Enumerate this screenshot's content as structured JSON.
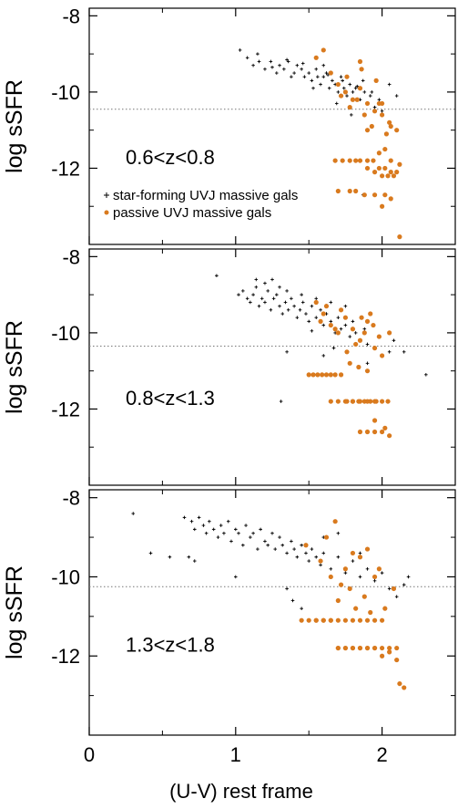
{
  "chart_data": {
    "type": "scatter",
    "xlabel": "(U-V) rest frame",
    "ylabel": "log sSFR",
    "xlim": [
      0,
      2.5
    ],
    "x_ticks": [
      "0",
      "1",
      "2"
    ],
    "colors": {
      "star_forming": "#000000",
      "passive": "#d97a1e",
      "reference_line": "#777777"
    },
    "legend": {
      "placement": "inside-top-panel-left",
      "entries": [
        {
          "marker": "cross",
          "color": "#000000",
          "label": "star-forming UVJ massive gals"
        },
        {
          "marker": "dot",
          "color": "#d97a1e",
          "label": "passive UVJ massive gals"
        }
      ]
    },
    "panels": [
      {
        "label": "0.6<z<0.8",
        "ylim": [
          -14.0,
          -7.8
        ],
        "y_ticks": [
          "-8",
          "-10",
          "-12"
        ],
        "threshold": -10.45,
        "series": [
          {
            "name": "star-forming UVJ massive gals",
            "marker": "cross",
            "x": [
              1.03,
              1.08,
              1.12,
              1.16,
              1.2,
              1.24,
              1.28,
              1.3,
              1.33,
              1.36,
              1.38,
              1.4,
              1.42,
              1.45,
              1.47,
              1.5,
              1.52,
              1.55,
              1.58,
              1.6,
              1.62,
              1.64,
              1.66,
              1.68,
              1.7,
              1.72,
              1.74,
              1.76,
              1.78,
              1.8,
              1.82,
              1.85,
              1.88,
              1.9,
              1.92,
              1.95,
              1.98,
              2.0,
              1.15,
              1.25,
              1.35,
              1.46,
              1.56,
              1.63,
              1.73,
              1.83,
              1.93,
              1.53,
              1.69,
              1.79,
              1.6,
              1.87,
              2.05,
              2.1,
              1.87
            ],
            "y": [
              -8.9,
              -9.1,
              -9.3,
              -9.2,
              -9.4,
              -9.2,
              -9.5,
              -9.3,
              -9.4,
              -9.2,
              -9.6,
              -9.5,
              -9.3,
              -9.4,
              -9.6,
              -9.5,
              -9.7,
              -9.4,
              -9.8,
              -9.6,
              -9.5,
              -9.9,
              -9.7,
              -9.8,
              -10.0,
              -9.6,
              -9.9,
              -10.1,
              -9.8,
              -10.0,
              -9.9,
              -10.2,
              -10.0,
              -10.3,
              -10.1,
              -10.4,
              -10.2,
              -10.5,
              -9.0,
              -9.35,
              -9.15,
              -9.25,
              -9.6,
              -9.55,
              -9.7,
              -9.85,
              -10.0,
              -9.9,
              -10.3,
              -10.6,
              -9.3,
              -9.7,
              -9.8,
              -10.1,
              -12.7
            ],
            "values_shown": "approximate, read from the plot"
          },
          {
            "name": "passive UVJ massive gals",
            "marker": "dot",
            "x": [
              1.6,
              1.55,
              1.65,
              1.7,
              1.75,
              1.8,
              1.85,
              1.9,
              1.95,
              2.0,
              2.05,
              2.1,
              1.72,
              1.78,
              1.83,
              1.88,
              1.93,
              1.98,
              2.03,
              1.76,
              1.86,
              1.96,
              2.06,
              1.9,
              2.0,
              1.68,
              1.73,
              1.78,
              1.82,
              1.85,
              1.9,
              1.94,
              1.98,
              2.02,
              2.06,
              2.1,
              1.9,
              1.95,
              2.0,
              2.04,
              2.08,
              2.12,
              1.98,
              2.02,
              2.06,
              1.7,
              1.78,
              1.82,
              1.88,
              1.95,
              2.02,
              2.06,
              2.0,
              1.85,
              2.12
            ],
            "y": [
              -8.9,
              -9.1,
              -9.5,
              -9.8,
              -10.0,
              -10.2,
              -9.9,
              -10.3,
              -10.5,
              -10.6,
              -10.8,
              -11.0,
              -10.1,
              -10.4,
              -10.2,
              -10.6,
              -10.9,
              -10.3,
              -11.1,
              -9.6,
              -9.4,
              -9.7,
              -10.9,
              -11.0,
              -10.3,
              -11.8,
              -11.8,
              -11.8,
              -11.8,
              -11.8,
              -11.8,
              -11.8,
              -12.0,
              -12.0,
              -12.1,
              -12.1,
              -12.0,
              -12.1,
              -12.2,
              -12.2,
              -12.2,
              -11.9,
              -11.6,
              -11.5,
              -11.8,
              -12.6,
              -12.6,
              -12.6,
              -12.7,
              -12.7,
              -12.7,
              -12.8,
              -13.0,
              -9.2,
              -13.8
            ],
            "values_shown": "approximate, read from the plot"
          }
        ]
      },
      {
        "label": "0.8<z<1.3",
        "ylim": [
          -14.0,
          -7.8
        ],
        "y_ticks": [
          "-8",
          "-10",
          "-12"
        ],
        "threshold": -10.35,
        "series": [
          {
            "name": "star-forming UVJ massive gals",
            "marker": "cross",
            "x": [
              0.87,
              1.02,
              1.05,
              1.08,
              1.1,
              1.12,
              1.14,
              1.16,
              1.18,
              1.2,
              1.22,
              1.24,
              1.26,
              1.28,
              1.3,
              1.32,
              1.34,
              1.36,
              1.38,
              1.4,
              1.42,
              1.44,
              1.46,
              1.48,
              1.5,
              1.52,
              1.55,
              1.58,
              1.6,
              1.62,
              1.65,
              1.68,
              1.7,
              1.72,
              1.75,
              1.78,
              1.8,
              1.82,
              1.85,
              1.88,
              1.9,
              1.95,
              2.0,
              2.05,
              1.14,
              1.2,
              1.25,
              1.3,
              1.35,
              1.45,
              1.55,
              1.65,
              1.75,
              1.6,
              1.67,
              1.9,
              1.52,
              1.35,
              2.08,
              2.15,
              2.3,
              1.31
            ],
            "y": [
              -8.5,
              -9.0,
              -8.9,
              -9.1,
              -9.2,
              -9.0,
              -8.8,
              -9.3,
              -9.1,
              -9.2,
              -8.9,
              -9.4,
              -9.1,
              -9.0,
              -9.3,
              -9.5,
              -9.2,
              -9.4,
              -9.1,
              -9.3,
              -9.6,
              -9.4,
              -9.2,
              -9.5,
              -9.7,
              -9.3,
              -9.6,
              -9.4,
              -9.8,
              -9.5,
              -9.7,
              -10.0,
              -9.6,
              -9.9,
              -9.8,
              -10.1,
              -9.7,
              -10.0,
              -10.2,
              -9.9,
              -10.3,
              -10.4,
              -10.6,
              -10.5,
              -8.6,
              -8.7,
              -8.6,
              -8.8,
              -8.9,
              -9.0,
              -9.1,
              -9.2,
              -9.3,
              -10.6,
              -10.4,
              -10.8,
              -9.95,
              -10.5,
              -10.2,
              -10.5,
              -11.1,
              -11.8
            ],
            "values_shown": "approximate, read from the plot"
          },
          {
            "name": "passive UVJ massive gals",
            "marker": "dot",
            "x": [
              1.55,
              1.6,
              1.65,
              1.7,
              1.75,
              1.8,
              1.85,
              1.9,
              1.95,
              2.0,
              2.05,
              1.62,
              1.72,
              1.78,
              1.82,
              1.88,
              1.92,
              1.98,
              1.68,
              1.86,
              1.94,
              1.58,
              1.76,
              1.84,
              1.9,
              1.5,
              1.53,
              1.56,
              1.59,
              1.62,
              1.65,
              1.68,
              1.72,
              1.76,
              1.8,
              1.84,
              1.88,
              1.92,
              1.96,
              2.0,
              2.04,
              1.65,
              1.7,
              1.75,
              1.8,
              1.85,
              1.9,
              1.95,
              1.85,
              1.9,
              1.95,
              2.0,
              2.05,
              1.95,
              2.02
            ],
            "y": [
              -9.2,
              -9.5,
              -9.8,
              -10.0,
              -9.6,
              -9.9,
              -10.2,
              -9.7,
              -10.4,
              -10.6,
              -10.0,
              -9.3,
              -9.4,
              -10.8,
              -10.3,
              -10.0,
              -9.5,
              -10.1,
              -9.9,
              -9.6,
              -9.8,
              -9.7,
              -10.5,
              -10.9,
              -11.0,
              -11.1,
              -11.1,
              -11.1,
              -11.1,
              -11.1,
              -11.1,
              -11.1,
              -11.1,
              -11.8,
              -11.8,
              -11.8,
              -11.8,
              -11.8,
              -11.8,
              -11.8,
              -11.8,
              -11.8,
              -11.8,
              -11.8,
              -11.8,
              -11.8,
              -11.8,
              -11.8,
              -12.6,
              -12.6,
              -12.6,
              -12.6,
              -12.7,
              -12.3,
              -12.5
            ],
            "values_shown": "approximate, read from the plot"
          }
        ]
      },
      {
        "label": "1.3<z<1.8",
        "ylim": [
          -14.0,
          -7.8
        ],
        "y_ticks": [
          "-8",
          "-10",
          "-12"
        ],
        "threshold": -10.25,
        "series": [
          {
            "name": "star-forming UVJ massive gals",
            "marker": "cross",
            "x": [
              0.3,
              0.42,
              0.55,
              0.65,
              0.7,
              0.72,
              0.75,
              0.78,
              0.8,
              0.82,
              0.85,
              0.88,
              0.9,
              0.92,
              0.95,
              0.97,
              1.0,
              1.02,
              1.05,
              1.07,
              1.1,
              1.12,
              1.15,
              1.17,
              1.2,
              1.22,
              1.25,
              1.27,
              1.3,
              1.32,
              1.35,
              1.38,
              1.4,
              1.42,
              1.45,
              1.48,
              1.5,
              1.52,
              1.55,
              1.58,
              1.6,
              1.65,
              1.7,
              1.75,
              1.8,
              1.85,
              1.9,
              1.95,
              2.0,
              2.05,
              2.1,
              2.15,
              2.18,
              0.68,
              0.72,
              1.0,
              1.35,
              1.39,
              1.45,
              1.6,
              1.7,
              1.85
            ],
            "y": [
              -8.4,
              -9.4,
              -9.5,
              -8.5,
              -8.6,
              -8.8,
              -8.5,
              -8.7,
              -8.9,
              -8.6,
              -8.8,
              -9.0,
              -8.7,
              -8.9,
              -8.6,
              -9.1,
              -8.8,
              -8.9,
              -9.2,
              -8.7,
              -9.0,
              -8.9,
              -9.3,
              -8.8,
              -9.1,
              -9.2,
              -8.9,
              -9.3,
              -9.0,
              -9.2,
              -9.4,
              -9.1,
              -9.3,
              -9.5,
              -9.2,
              -9.4,
              -9.6,
              -9.3,
              -9.5,
              -9.7,
              -9.4,
              -9.8,
              -9.5,
              -9.9,
              -9.6,
              -10.0,
              -9.8,
              -10.1,
              -9.9,
              -10.3,
              -10.5,
              -10.2,
              -10.0,
              -9.5,
              -9.6,
              -10.0,
              -10.3,
              -10.6,
              -10.8,
              -9.0,
              -8.9,
              -9.4
            ],
            "values_shown": "approximate, read from the plot"
          },
          {
            "name": "passive UVJ massive gals",
            "marker": "dot",
            "x": [
              1.48,
              1.58,
              1.62,
              1.68,
              1.72,
              1.75,
              1.78,
              1.82,
              1.85,
              1.9,
              1.95,
              1.98,
              1.65,
              1.7,
              1.8,
              1.88,
              1.92,
              2.02,
              2.08,
              1.55,
              1.6,
              1.65,
              1.7,
              1.75,
              1.8,
              1.85,
              1.9,
              1.95,
              2.0,
              1.45,
              1.5,
              1.55,
              1.6,
              1.65,
              1.7,
              1.75,
              1.8,
              1.85,
              1.9,
              1.95,
              1.7,
              1.75,
              1.8,
              1.85,
              1.9,
              1.95,
              2.0,
              2.05,
              2.1,
              2.0,
              2.05,
              2.1,
              2.12,
              2.15
            ],
            "y": [
              -9.2,
              -9.6,
              -9.0,
              -8.6,
              -10.2,
              -9.8,
              -10.3,
              -10.8,
              -9.5,
              -9.3,
              -10.0,
              -9.8,
              -10.0,
              -10.6,
              -9.4,
              -10.5,
              -10.9,
              -10.8,
              -10.3,
              -11.1,
              -11.1,
              -11.1,
              -11.1,
              -11.1,
              -11.1,
              -11.1,
              -11.1,
              -11.1,
              -11.1,
              -11.1,
              -11.1,
              -11.1,
              -11.1,
              -11.1,
              -11.8,
              -11.8,
              -11.8,
              -11.8,
              -11.8,
              -11.8,
              -11.8,
              -11.8,
              -11.8,
              -11.8,
              -11.8,
              -11.8,
              -11.8,
              -11.8,
              -11.8,
              -12.0,
              -11.9,
              -12.1,
              -12.7,
              -12.8
            ],
            "values_shown": "approximate, read from the plot"
          }
        ]
      }
    ]
  }
}
